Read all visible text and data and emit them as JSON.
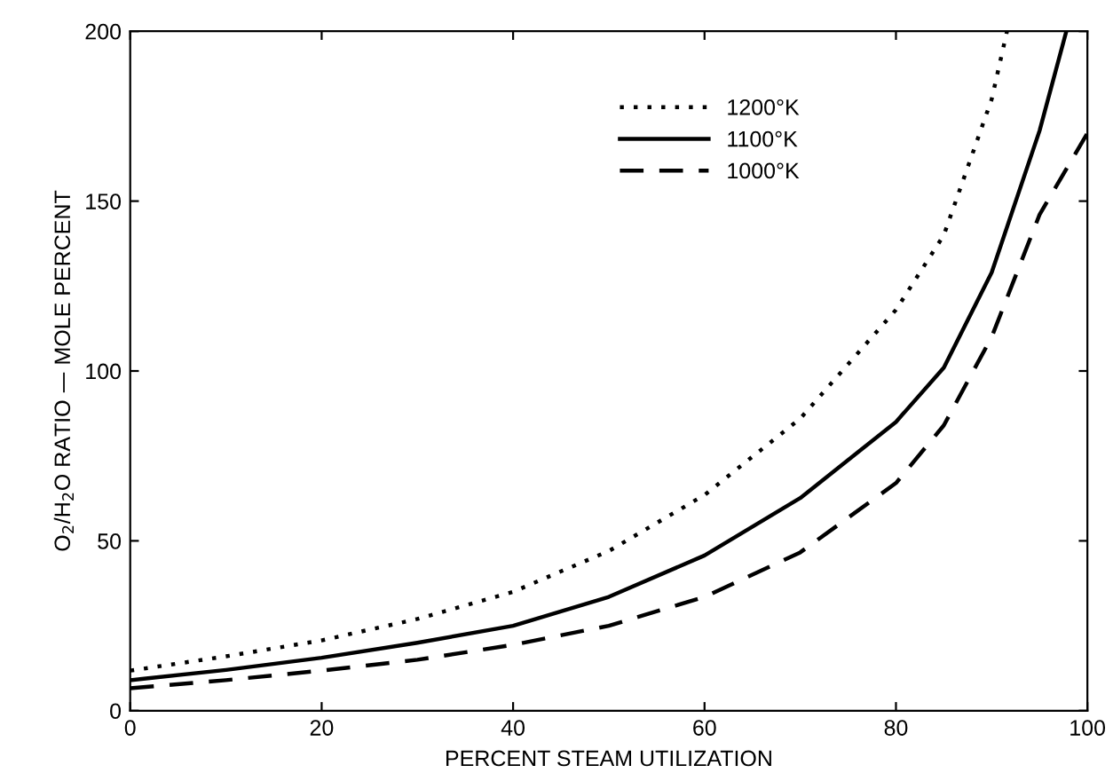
{
  "chart_data": {
    "type": "line",
    "xlabel": "PERCENT STEAM UTILIZATION",
    "ylabel": "O$_{2}$/H$_{2}$O RATIO — MOLE PERCENT",
    "xlim": [
      0,
      100
    ],
    "ylim": [
      0,
      200
    ],
    "xticks": [
      0,
      20,
      40,
      60,
      80,
      100
    ],
    "yticks": [
      0,
      50,
      100,
      150,
      200
    ],
    "grid": false,
    "legend": "top right",
    "series": [
      {
        "name": "1200°K",
        "color": "#000000",
        "line_style": "dotted",
        "x": [
          0,
          10,
          20,
          30,
          40,
          50,
          60,
          70,
          80,
          85,
          90,
          91.6
        ],
        "values": [
          11.8,
          16,
          20.7,
          27,
          35,
          47,
          63.5,
          86,
          118,
          140,
          180,
          200
        ]
      },
      {
        "name": "1100°K",
        "color": "#000000",
        "line_style": "solid",
        "x": [
          0,
          10,
          20,
          30,
          40,
          50,
          60,
          70,
          80,
          85,
          90,
          95,
          97.8
        ],
        "values": [
          9,
          12,
          15.6,
          20,
          25,
          33.5,
          45.7,
          62.6,
          85,
          101,
          129,
          170.7,
          200
        ]
      },
      {
        "name": "1000°K",
        "color": "#000000",
        "line_style": "dashed",
        "x": [
          0,
          10,
          20,
          30,
          40,
          50,
          60,
          70,
          80,
          85,
          90,
          95,
          100
        ],
        "values": [
          6.6,
          9,
          11.8,
          15,
          19.4,
          25,
          33.5,
          46.6,
          67,
          84,
          110,
          146,
          170
        ]
      }
    ]
  }
}
